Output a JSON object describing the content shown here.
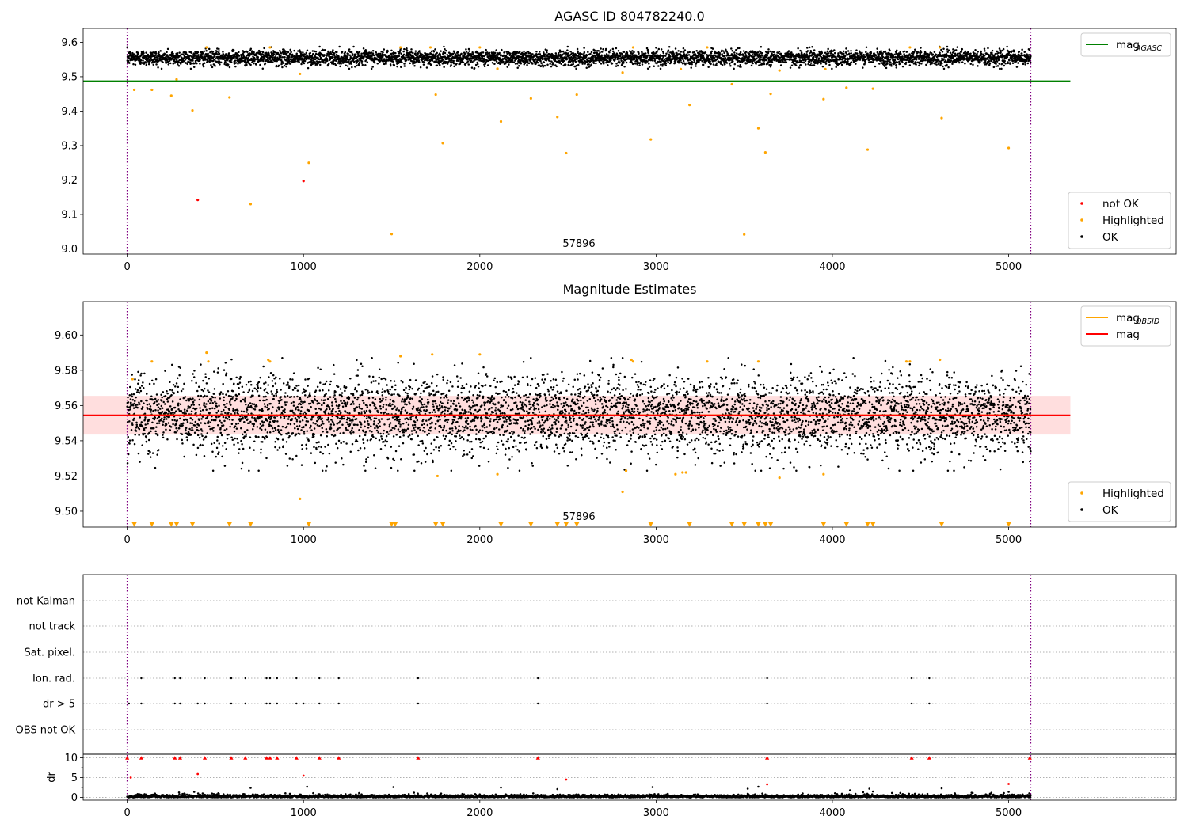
{
  "figure": {
    "colors": {
      "ok": "#000000",
      "highlighted": "#ffa500",
      "not_ok": "#ff0000",
      "mag_agasc": "#008000",
      "mag_obsid": "#ffa500",
      "mag": "#ff0000",
      "band": "#ff000022",
      "obs_boundary": "#800080",
      "grid": "#b0b0b0"
    }
  },
  "chart_data": [
    {
      "type": "scatter",
      "title": "AGASC ID 804782240.0",
      "xlim": [
        -250,
        5950
      ],
      "ylim": [
        8.985,
        9.64
      ],
      "x_ticks": [
        "0",
        "1000",
        "2000",
        "3000",
        "4000",
        "5000"
      ],
      "y_ticks": [
        "9.0",
        "9.1",
        "9.2",
        "9.3",
        "9.4",
        "9.5",
        "9.6"
      ],
      "annotation": "57896",
      "annotation_x": 2560,
      "obs_boundaries_x": [
        0,
        5125
      ],
      "lines": [
        {
          "name_main": "mag",
          "name_sub": "AGASC",
          "y": 9.487,
          "x_range": [
            -250,
            5350
          ],
          "color_key": "mag_agasc"
        }
      ],
      "legend_lines_position": "upper right",
      "legend_points": [
        "not OK",
        "Highlighted",
        "OK"
      ],
      "legend_points_position": "lower right",
      "series": [
        {
          "name": "OK",
          "n_points": 5100,
          "x_range": [
            0,
            5125
          ],
          "mean": 9.555,
          "spread": 0.011
        },
        {
          "name": "Highlighted",
          "points": [
            [
              40,
              9.462
            ],
            [
              140,
              9.462
            ],
            [
              250,
              9.445
            ],
            [
              280,
              9.492
            ],
            [
              370,
              9.402
            ],
            [
              450,
              9.585
            ],
            [
              580,
              9.44
            ],
            [
              700,
              9.13
            ],
            [
              810,
              9.585
            ],
            [
              980,
              9.508
            ],
            [
              1030,
              9.25
            ],
            [
              1500,
              9.043
            ],
            [
              1550,
              9.585
            ],
            [
              1720,
              9.585
            ],
            [
              1750,
              9.448
            ],
            [
              1790,
              9.307
            ],
            [
              2000,
              9.585
            ],
            [
              2100,
              9.523
            ],
            [
              2120,
              9.37
            ],
            [
              2290,
              9.437
            ],
            [
              2440,
              9.383
            ],
            [
              2490,
              9.278
            ],
            [
              2550,
              9.448
            ],
            [
              2810,
              9.512
            ],
            [
              2870,
              9.585
            ],
            [
              2970,
              9.318
            ],
            [
              3140,
              9.522
            ],
            [
              3190,
              9.418
            ],
            [
              3290,
              9.585
            ],
            [
              3430,
              9.478
            ],
            [
              3500,
              9.042
            ],
            [
              3580,
              9.35
            ],
            [
              3620,
              9.28
            ],
            [
              3650,
              9.45
            ],
            [
              3700,
              9.518
            ],
            [
              3950,
              9.435
            ],
            [
              3960,
              9.522
            ],
            [
              4080,
              9.468
            ],
            [
              4200,
              9.288
            ],
            [
              4230,
              9.465
            ],
            [
              4440,
              9.585
            ],
            [
              4610,
              9.585
            ],
            [
              4620,
              9.38
            ],
            [
              5000,
              9.293
            ]
          ]
        },
        {
          "name": "not OK",
          "points": [
            [
              400,
              9.142
            ],
            [
              1000,
              9.197
            ]
          ]
        }
      ]
    },
    {
      "type": "scatter",
      "title": "Magnitude Estimates",
      "xlim": [
        -250,
        5950
      ],
      "ylim": [
        9.491,
        9.619
      ],
      "x_ticks": [
        "0",
        "1000",
        "2000",
        "3000",
        "4000",
        "5000"
      ],
      "y_ticks": [
        "9.50",
        "9.52",
        "9.54",
        "9.56",
        "9.58",
        "9.60"
      ],
      "annotation": "57896",
      "annotation_x": 2560,
      "obs_boundaries_x": [
        0,
        5125
      ],
      "band": {
        "y_range": [
          9.5435,
          9.5655
        ],
        "x_range": [
          -250,
          5350
        ]
      },
      "lines": [
        {
          "name_main": "mag",
          "name_sub": "OBSID",
          "y": 9.5545,
          "x_range": [
            0,
            5125
          ],
          "color_key": "mag_obsid"
        },
        {
          "name_main": "mag",
          "name_sub": "",
          "y": 9.5545,
          "x_range": [
            -250,
            5350
          ],
          "color_key": "mag"
        }
      ],
      "legend_lines_position": "upper right",
      "legend_points": [
        "Highlighted",
        "OK"
      ],
      "legend_points_position": "lower right",
      "series": [
        {
          "name": "OK",
          "n_points": 5100,
          "x_range": [
            0,
            5125
          ],
          "mean": 9.555,
          "spread": 0.011
        },
        {
          "name": "Highlighted",
          "points": [
            [
              30,
              9.575
            ],
            [
              140,
              9.585
            ],
            [
              450,
              9.59
            ],
            [
              460,
              9.585
            ],
            [
              800,
              9.586
            ],
            [
              810,
              9.585
            ],
            [
              980,
              9.507
            ],
            [
              1550,
              9.588
            ],
            [
              1730,
              9.589
            ],
            [
              1760,
              9.52
            ],
            [
              2000,
              9.589
            ],
            [
              2100,
              9.521
            ],
            [
              2810,
              9.511
            ],
            [
              2830,
              9.523
            ],
            [
              2860,
              9.586
            ],
            [
              2870,
              9.585
            ],
            [
              3110,
              9.521
            ],
            [
              3150,
              9.522
            ],
            [
              3170,
              9.522
            ],
            [
              3290,
              9.585
            ],
            [
              3580,
              9.585
            ],
            [
              3700,
              9.519
            ],
            [
              3950,
              9.521
            ],
            [
              4420,
              9.585
            ],
            [
              4440,
              9.585
            ],
            [
              4610,
              9.586
            ]
          ]
        },
        {
          "name": "Highlighted (below axis)",
          "marker": "down-triangle",
          "y": 9.4925,
          "x": [
            40,
            140,
            250,
            280,
            370,
            580,
            700,
            1030,
            1500,
            1520,
            1750,
            1790,
            2120,
            2290,
            2440,
            2490,
            2550,
            2970,
            3190,
            3430,
            3500,
            3580,
            3620,
            3650,
            3950,
            4080,
            4200,
            4230,
            4620,
            5000
          ]
        }
      ]
    },
    {
      "type": "scatter",
      "title": "",
      "xlim": [
        -250,
        5950
      ],
      "x_ticks": [
        "0",
        "1000",
        "2000",
        "3000",
        "4000",
        "5000"
      ],
      "obs_boundaries_x": [
        0,
        5125
      ],
      "flag_rows": [
        "not Kalman",
        "not track",
        "Sat. pixel.",
        "Ion. rad.",
        "dr > 5",
        "OBS not OK"
      ],
      "flags": {
        "Ion. rad.": [
          80,
          270,
          300,
          440,
          590,
          670,
          790,
          810,
          850,
          960,
          1090,
          1200,
          1650,
          2330,
          3630,
          4450,
          4550
        ],
        "dr > 5": [
          10,
          80,
          270,
          300,
          400,
          440,
          590,
          670,
          790,
          810,
          850,
          960,
          1000,
          1090,
          1200,
          1650,
          2330,
          3630,
          4450,
          4550
        ]
      },
      "dr_panel": {
        "ylabel": "dr",
        "ylim": [
          -0.5,
          10.5
        ],
        "y_ticks": [
          "0",
          "5",
          "10"
        ],
        "capped_points_x": [
          0,
          80,
          270,
          300,
          440,
          590,
          670,
          790,
          810,
          850,
          960,
          1090,
          1200,
          1650,
          2330,
          3630,
          4450,
          4550,
          5120
        ],
        "high_points": [
          [
            20,
            5.0
          ],
          [
            400,
            5.9
          ],
          [
            1000,
            5.5
          ],
          [
            2490,
            4.5
          ],
          [
            3630,
            3.3
          ],
          [
            5000,
            3.4
          ]
        ],
        "ok_outliers": [
          [
            380,
            1.4
          ],
          [
            520,
            0.9
          ],
          [
            700,
            2.4
          ],
          [
            1020,
            2.7
          ],
          [
            1510,
            2.6
          ],
          [
            2120,
            2.5
          ],
          [
            2440,
            2.1
          ],
          [
            2980,
            2.6
          ],
          [
            3520,
            2.2
          ],
          [
            3580,
            2.7
          ],
          [
            4100,
            1.8
          ],
          [
            4210,
            2.2
          ],
          [
            4230,
            1.5
          ],
          [
            4620,
            2.3
          ],
          [
            5000,
            1.4
          ]
        ]
      }
    }
  ]
}
